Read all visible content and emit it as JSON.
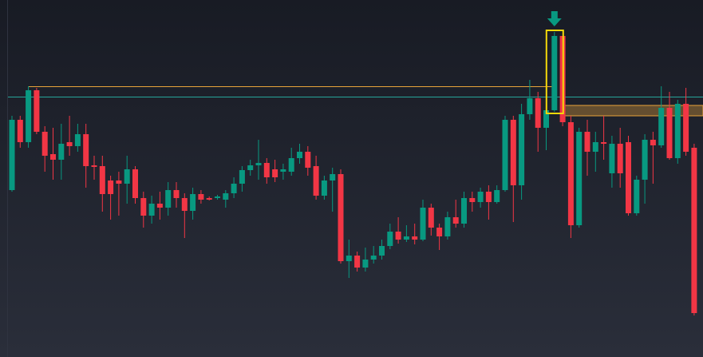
{
  "chart_data": {
    "type": "candlestick",
    "ylim": [
      0,
      447
    ],
    "up_color": "#089981",
    "down_color": "#f23645",
    "open": [
      209,
      297,
      269,
      334,
      282,
      254,
      247,
      269,
      264,
      279,
      240,
      239,
      221,
      221,
      217,
      235,
      199,
      177,
      192,
      187,
      209,
      199,
      183,
      204,
      199,
      199,
      197,
      205,
      217,
      234,
      240,
      243,
      235,
      232,
      232,
      249,
      257,
      239,
      202,
      221,
      229,
      120,
      127,
      112,
      122,
      127,
      139,
      157,
      147,
      151,
      147,
      187,
      162,
      151,
      175,
      167,
      199,
      194,
      207,
      194,
      209,
      297,
      215,
      304,
      324,
      287,
      309,
      402,
      294,
      165,
      282,
      257,
      269,
      230,
      267,
      269,
      180,
      222,
      272,
      265,
      312,
      249,
      317,
      262
    ],
    "high": [
      302,
      302,
      339,
      337,
      289,
      287,
      292,
      302,
      292,
      292,
      252,
      252,
      227,
      232,
      252,
      239,
      207,
      202,
      207,
      219,
      219,
      205,
      212,
      209,
      201,
      203,
      209,
      225,
      239,
      247,
      272,
      249,
      247,
      242,
      262,
      267,
      264,
      252,
      227,
      237,
      235,
      147,
      132,
      137,
      139,
      147,
      167,
      175,
      165,
      167,
      197,
      192,
      167,
      182,
      197,
      207,
      207,
      212,
      215,
      215,
      302,
      302,
      317,
      347,
      332,
      327,
      407,
      402,
      302,
      287,
      297,
      282,
      302,
      277,
      287,
      277,
      227,
      279,
      282,
      339,
      332,
      322,
      337,
      267
    ],
    "low": [
      207,
      262,
      262,
      279,
      232,
      222,
      222,
      252,
      257,
      212,
      222,
      182,
      172,
      177,
      192,
      192,
      162,
      167,
      172,
      177,
      187,
      149,
      172,
      192,
      196,
      197,
      187,
      199,
      207,
      227,
      222,
      217,
      219,
      222,
      227,
      242,
      227,
      197,
      197,
      182,
      117,
      99,
      107,
      107,
      117,
      122,
      135,
      142,
      144,
      141,
      145,
      152,
      134,
      147,
      162,
      162,
      182,
      187,
      172,
      192,
      207,
      169,
      197,
      297,
      257,
      259,
      307,
      289,
      149,
      162,
      227,
      232,
      247,
      212,
      212,
      177,
      177,
      192,
      217,
      262,
      247,
      242,
      252,
      52
    ],
    "close": [
      297,
      269,
      334,
      282,
      252,
      247,
      267,
      264,
      279,
      239,
      238,
      204,
      204,
      217,
      235,
      199,
      177,
      192,
      187,
      209,
      199,
      183,
      204,
      197,
      197,
      201,
      205,
      217,
      234,
      240,
      243,
      225,
      225,
      235,
      249,
      257,
      237,
      202,
      221,
      229,
      120,
      127,
      112,
      122,
      127,
      139,
      157,
      147,
      151,
      147,
      187,
      162,
      151,
      175,
      167,
      199,
      194,
      207,
      194,
      209,
      297,
      215,
      304,
      324,
      287,
      309,
      402,
      294,
      165,
      282,
      257,
      269,
      267,
      267,
      230,
      180,
      222,
      272,
      265,
      312,
      249,
      317,
      257,
      55
    ],
    "levels": [
      {
        "value": 339,
        "color": "#e8a33a"
      },
      {
        "value": 326,
        "color": "#26a69a"
      }
    ],
    "zone": {
      "from": 302,
      "to": 315,
      "color": "#e8a33a"
    },
    "highlight": 66,
    "highlight_color": "#f5d90a",
    "arrow_color": "#089981"
  }
}
